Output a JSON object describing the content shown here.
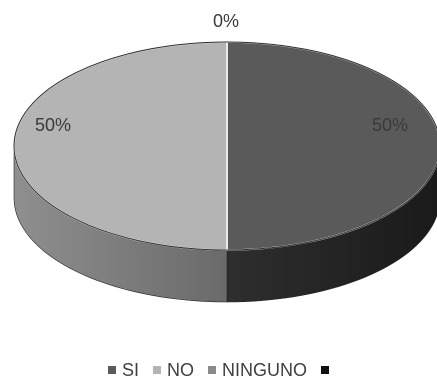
{
  "chart_data": {
    "type": "pie",
    "style": "3d",
    "categories": [
      "SI",
      "NO",
      "NINGUNO",
      ""
    ],
    "values": [
      50,
      50,
      0,
      0
    ],
    "data_labels": [
      "50%",
      "50%",
      "0%",
      ""
    ],
    "legend_position": "bottom",
    "colors": {
      "SI": "#5a5a5a",
      "NO": "#b4b4b4",
      "NINGUNO": "#8a8a8a",
      "unnamed": "#111111"
    }
  }
}
